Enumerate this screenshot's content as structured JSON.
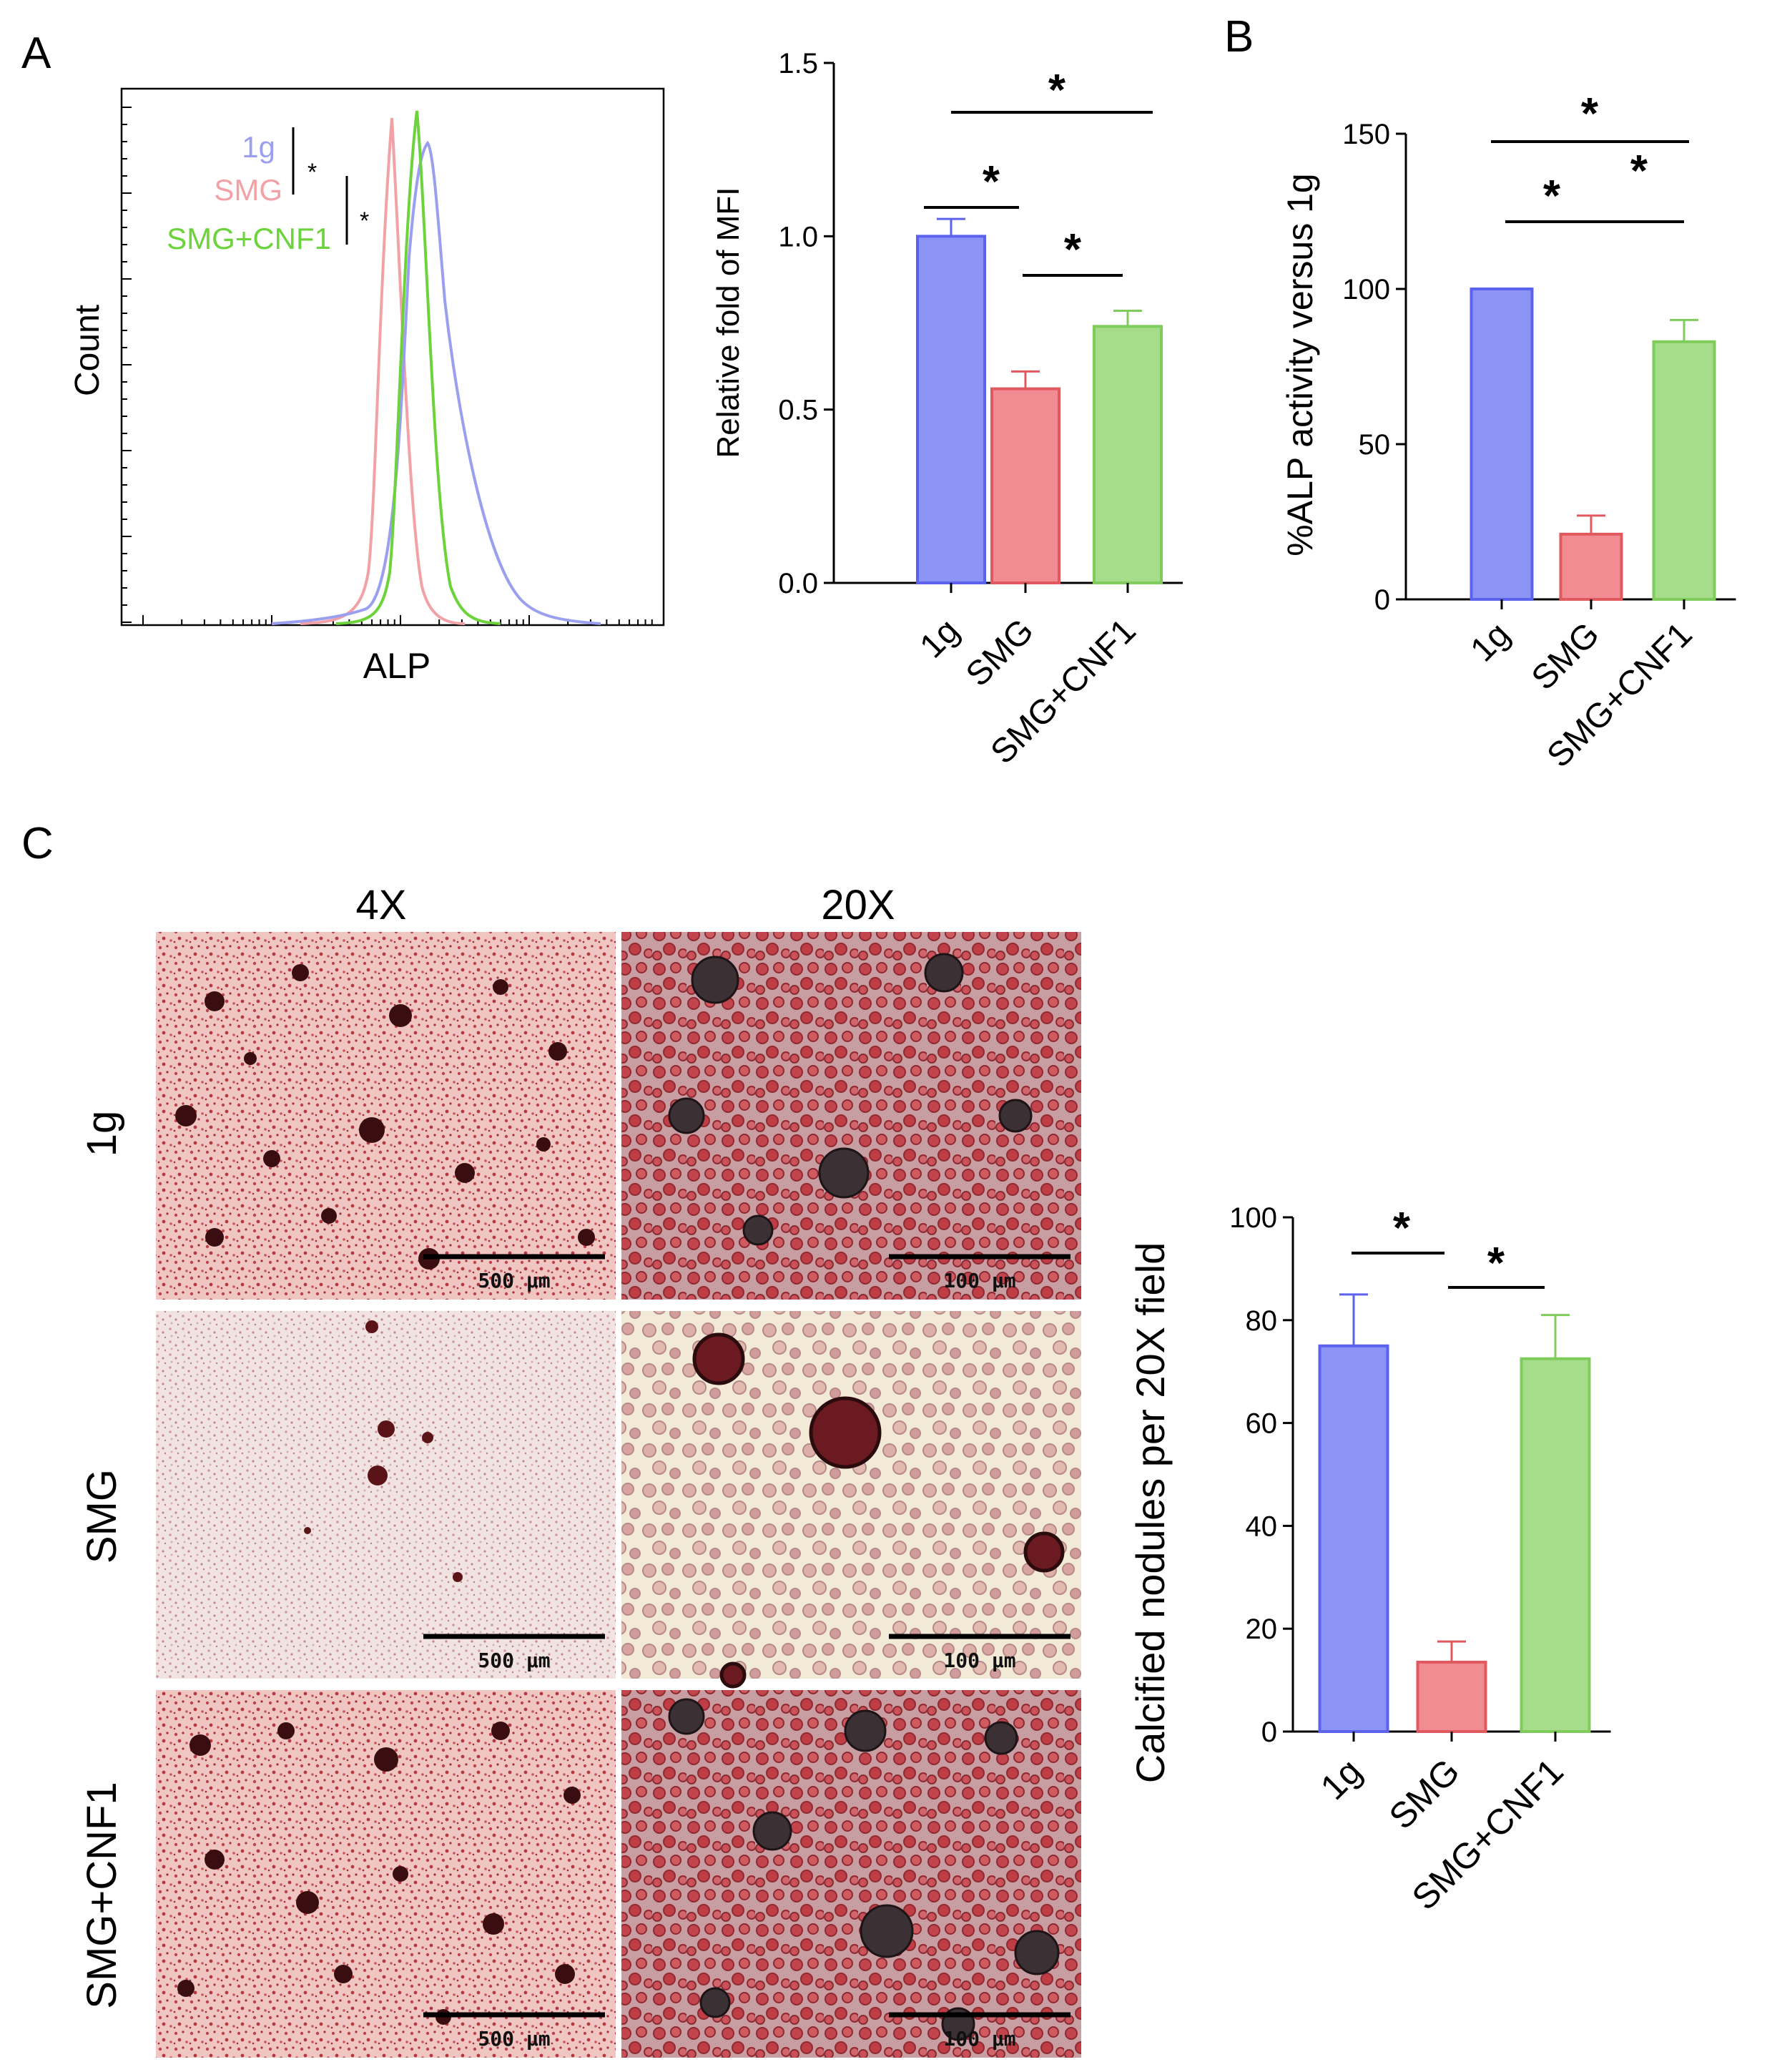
{
  "figure": {
    "panel_labels": {
      "a": "A",
      "b": "B",
      "c": "C"
    },
    "colors": {
      "1g": "#8c94f5",
      "SMG": "#f08c92",
      "SMG+CNF1": "#a6dd8a",
      "1g_edge": "#5a62ee",
      "SMG_edge": "#e0595f",
      "SMG+CNF1_edge": "#7fcc5c",
      "hist_1g": "#9a9ff0",
      "hist_SMG": "#f2a2a6",
      "hist_CNF1": "#6dd33b"
    }
  },
  "histogram": {
    "xlabel": "ALP",
    "ylabel": "Count",
    "legend": [
      "1g",
      "SMG",
      "SMG+CNF1"
    ],
    "sig_marks": [
      "*",
      "*"
    ]
  },
  "micrographs": {
    "columns": [
      "4X",
      "20X"
    ],
    "rows": [
      "1g",
      "SMG",
      "SMG+CNF1"
    ],
    "scalebars": [
      [
        "500 μm",
        "100 μm"
      ],
      [
        "500 μm",
        "100 μm"
      ],
      [
        "500 μm",
        "100 μm"
      ]
    ]
  },
  "chart_data": [
    {
      "id": "mfi",
      "type": "bar",
      "categories": [
        "1g",
        "SMG",
        "SMG+CNF1"
      ],
      "values": [
        1.0,
        0.56,
        0.74
      ],
      "errors": [
        0.05,
        0.05,
        0.045
      ],
      "ylabel": "Relative fold of MFI",
      "xlabel": "",
      "ylim": [
        0,
        1.5
      ],
      "yticks": [
        "0.0",
        "0.5",
        "1.0",
        "1.5"
      ],
      "sig": [
        "*",
        "*",
        "*"
      ]
    },
    {
      "id": "alp",
      "type": "bar",
      "categories": [
        "1g",
        "SMG",
        "SMG+CNF1"
      ],
      "values": [
        100,
        21,
        83
      ],
      "errors": [
        0,
        6,
        7
      ],
      "ylabel": "%ALP activity versus 1g",
      "xlabel": "",
      "ylim": [
        0,
        150
      ],
      "yticks": [
        "0",
        "50",
        "100",
        "150"
      ],
      "sig": [
        "*",
        "*",
        "*"
      ]
    },
    {
      "id": "nodules",
      "type": "bar",
      "categories": [
        "1g",
        "SMG",
        "SMG+CNF1"
      ],
      "values": [
        75,
        13.5,
        72.5
      ],
      "errors": [
        10,
        4,
        8.5
      ],
      "ylabel": "Calcified nodules per 20X field",
      "xlabel": "",
      "ylim": [
        0,
        100
      ],
      "yticks": [
        "0",
        "20",
        "40",
        "60",
        "80",
        "100"
      ],
      "sig": [
        "*",
        "*"
      ]
    }
  ]
}
